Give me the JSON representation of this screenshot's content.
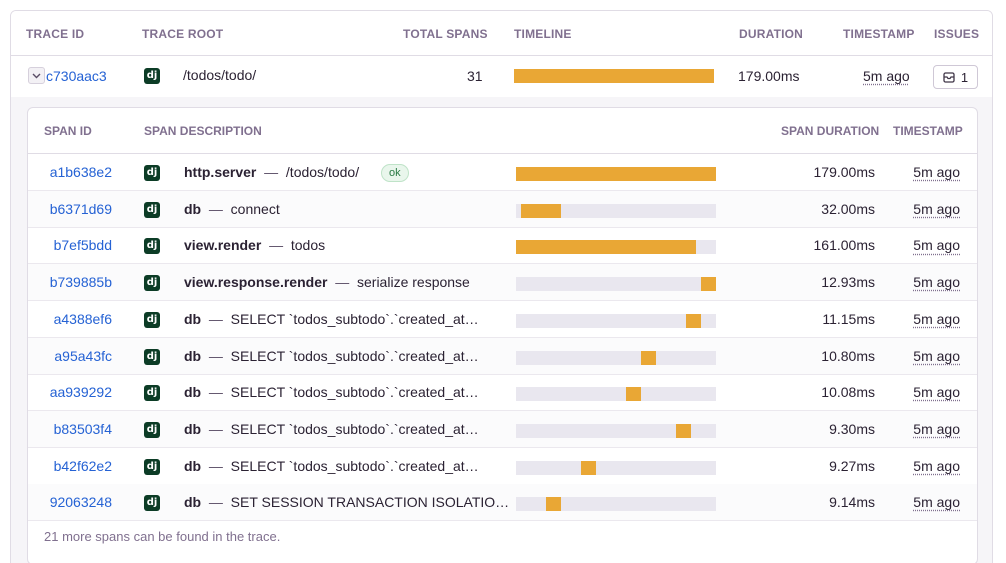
{
  "header": {
    "trace_id": "TRACE ID",
    "trace_root": "TRACE ROOT",
    "total_spans": "TOTAL SPANS",
    "timeline": "TIMELINE",
    "duration": "DURATION",
    "timestamp": "TIMESTAMP",
    "issues": "ISSUES"
  },
  "trace": {
    "id": "c730aac3",
    "root": "/todos/todo/",
    "total_spans": "31",
    "timeline_fraction": 1.0,
    "duration": "179.00ms",
    "timestamp": "5m ago",
    "issues_count": "1",
    "platform_icon": "dj"
  },
  "span_header": {
    "span_id": "SPAN ID",
    "span_description": "SPAN DESCRIPTION",
    "span_duration": "SPAN DURATION",
    "timestamp": "TIMESTAMP"
  },
  "spans": [
    {
      "id": "a1b638e2",
      "op": "http.server",
      "desc": "/todos/todo/",
      "badge": "ok",
      "duration": "179.00ms",
      "timestamp": "5m ago",
      "start": 0.0,
      "width": 1.0
    },
    {
      "id": "b6371d69",
      "op": "db",
      "desc": "connect",
      "duration": "32.00ms",
      "timestamp": "5m ago",
      "start": 0.025,
      "width": 0.2
    },
    {
      "id": "b7ef5bdd",
      "op": "view.render",
      "desc": "todos",
      "duration": "161.00ms",
      "timestamp": "5m ago",
      "start": 0.0,
      "width": 0.9
    },
    {
      "id": "b739885b",
      "op": "view.response.render",
      "desc": "serialize response",
      "duration": "12.93ms",
      "timestamp": "5m ago",
      "start": 0.925,
      "width": 0.075
    },
    {
      "id": "a4388ef6",
      "op": "db",
      "desc": "SELECT `todos_subtodo`.`created_at…",
      "duration": "11.15ms",
      "timestamp": "5m ago",
      "start": 0.85,
      "width": 0.075
    },
    {
      "id": "a95a43fc",
      "op": "db",
      "desc": "SELECT `todos_subtodo`.`created_at…",
      "duration": "10.80ms",
      "timestamp": "5m ago",
      "start": 0.625,
      "width": 0.075
    },
    {
      "id": "aa939292",
      "op": "db",
      "desc": "SELECT `todos_subtodo`.`created_at…",
      "duration": "10.08ms",
      "timestamp": "5m ago",
      "start": 0.55,
      "width": 0.075
    },
    {
      "id": "b83503f4",
      "op": "db",
      "desc": "SELECT `todos_subtodo`.`created_at…",
      "duration": "9.30ms",
      "timestamp": "5m ago",
      "start": 0.8,
      "width": 0.075
    },
    {
      "id": "b42f62e2",
      "op": "db",
      "desc": "SELECT `todos_subtodo`.`created_at…",
      "duration": "9.27ms",
      "timestamp": "5m ago",
      "start": 0.325,
      "width": 0.075
    },
    {
      "id": "92063248",
      "op": "db",
      "desc": "SET SESSION TRANSACTION ISOLATIO…",
      "duration": "9.14ms",
      "timestamp": "5m ago",
      "start": 0.15,
      "width": 0.075
    }
  ],
  "footer": "21 more spans can be found in the trace.",
  "colors": {
    "bar": "#e9a735",
    "track": "#e9e7ef",
    "link": "#2562d4",
    "dj_icon": "#0c3c26"
  }
}
